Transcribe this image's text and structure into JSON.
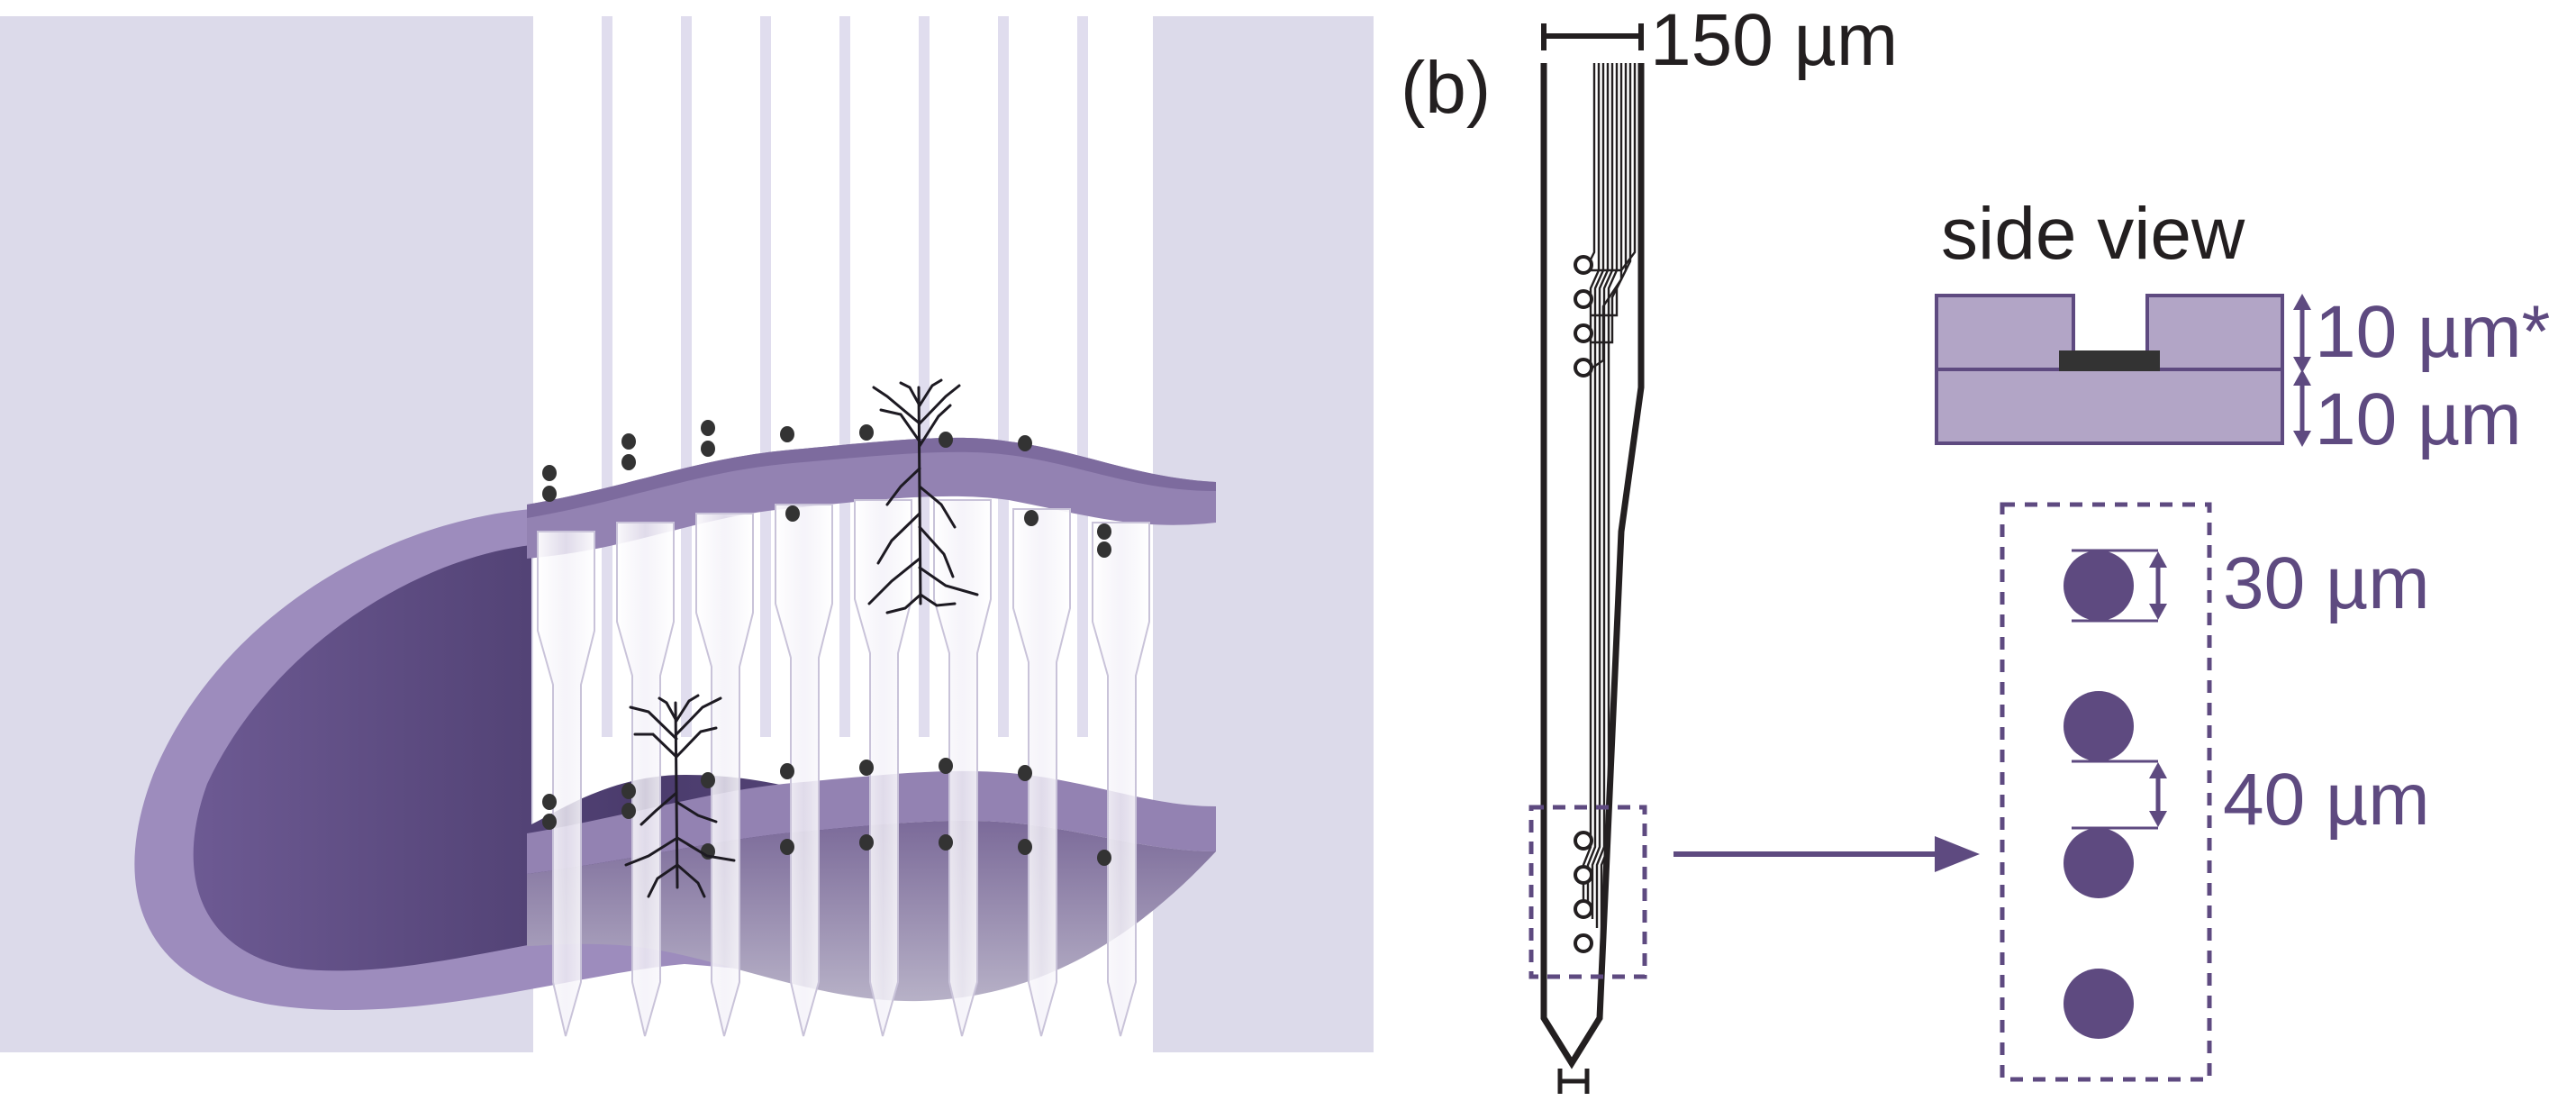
{
  "panel_b": {
    "label": "(b)",
    "probe_width": "150 µm",
    "side_view": {
      "title": "side view",
      "top_layer_thickness": "10 µm*",
      "bottom_layer_thickness": "10 µm"
    },
    "electrode_detail": {
      "diameter": "30 µm",
      "spacing": "40 µm"
    }
  },
  "colors": {
    "purple_dark": "#5e4a80",
    "purple_mid": "#8d7aa8",
    "purple_light": "#b2a5c6",
    "background_lavender": "#dcdaea",
    "electrode_black": "#333333"
  }
}
